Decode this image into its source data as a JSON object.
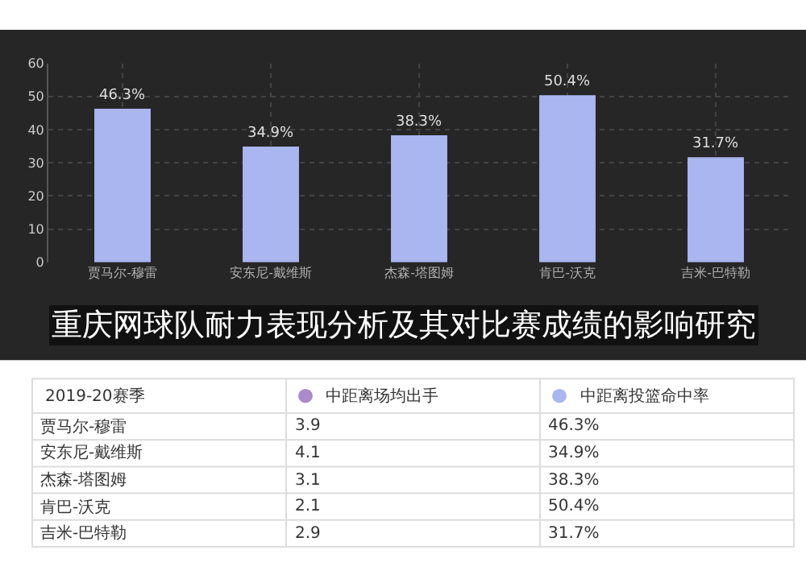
{
  "chart_data": [
    {
      "type": "bar",
      "title": "重庆网球队耐力表现分析及其对比赛成绩的影响研究",
      "categories": [
        "贾马尔-穆雷",
        "安东尼-戴维斯",
        "杰森-塔图姆",
        "肯巴-沃克",
        "吉米-巴特勒"
      ],
      "series": [
        {
          "color": "#aab6f0",
          "values": [
            46.3,
            34.9,
            38.3,
            50.4,
            31.7
          ],
          "value_labels": [
            "46.3%",
            "34.9%",
            "38.3%",
            "50.4%",
            "31.7%"
          ]
        }
      ],
      "ylim": [
        0,
        60
      ],
      "yticks": [
        0,
        10,
        20,
        30,
        40,
        50,
        60
      ],
      "grid": true
    },
    {
      "type": "other",
      "legend_title": "2019-20赛季",
      "categories": [
        "贾马尔-穆雷",
        "安东尼-戴维斯",
        "杰森-塔图姆",
        "肯巴-沃克",
        "吉米-巴特勒"
      ],
      "series": [
        {
          "name": "中距离场均出手",
          "color": "#a98bcb",
          "values": [
            3.9,
            4.1,
            3.1,
            2.1,
            2.9
          ]
        },
        {
          "name": "中距离投篮命中率",
          "color": "#aab6f0",
          "values": [
            46.3,
            34.9,
            38.3,
            50.4,
            31.7
          ],
          "value_labels": [
            "46.3%",
            "34.9%",
            "38.3%",
            "50.4%",
            "31.7%"
          ]
        }
      ],
      "data_labels": true
    }
  ]
}
